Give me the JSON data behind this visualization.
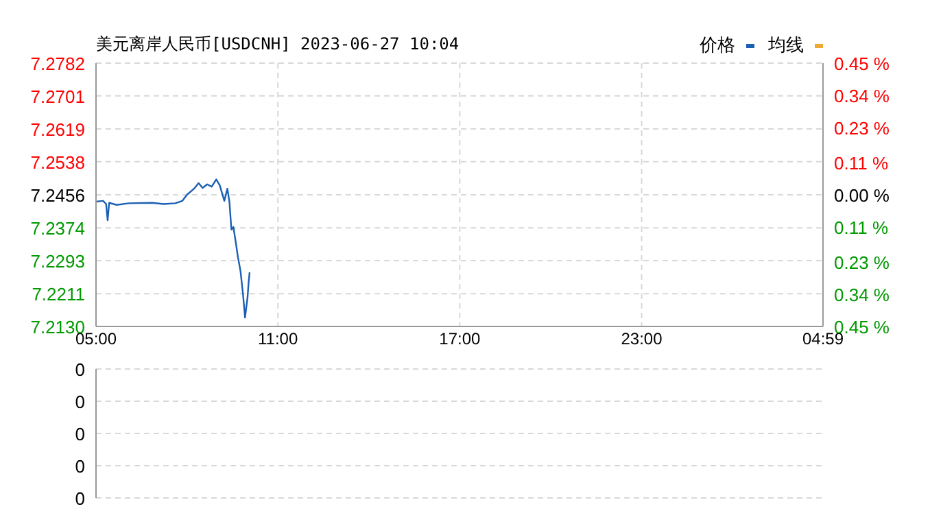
{
  "chart_data": [
    {
      "type": "line",
      "title": "美元离岸人民币[USDCNH] 2023-06-27 10:04",
      "x": [
        "2023-06-27T05:00",
        "2023-06-27T05:14",
        "2023-06-27T05:20",
        "2023-06-27T05:23",
        "2023-06-27T05:26",
        "2023-06-27T05:41",
        "2023-06-27T06:05",
        "2023-06-27T06:51",
        "2023-06-27T07:14",
        "2023-06-27T07:37",
        "2023-06-27T07:51",
        "2023-06-27T08:00",
        "2023-06-27T08:14",
        "2023-06-27T08:23",
        "2023-06-27T08:31",
        "2023-06-27T08:40",
        "2023-06-27T08:49",
        "2023-06-27T08:58",
        "2023-06-27T09:05",
        "2023-06-27T09:14",
        "2023-06-27T09:20",
        "2023-06-27T09:24",
        "2023-06-27T09:28",
        "2023-06-27T09:32",
        "2023-06-27T09:37",
        "2023-06-27T09:41",
        "2023-06-27T09:46",
        "2023-06-27T09:51",
        "2023-06-27T09:55",
        "2023-06-27T10:00",
        "2023-06-27T10:02",
        "2023-06-27T10:04"
      ],
      "series": [
        {
          "name": "价格",
          "color": "#1a5fb4",
          "values": [
            7.2439,
            7.2441,
            7.2433,
            7.2393,
            7.2436,
            7.2431,
            7.2435,
            7.2436,
            7.2433,
            7.2435,
            7.2441,
            7.2456,
            7.2471,
            7.2485,
            7.2473,
            7.2482,
            7.2476,
            7.2494,
            7.2479,
            7.2441,
            7.2471,
            7.2439,
            7.237,
            7.2376,
            7.2335,
            7.2301,
            7.2267,
            7.2209,
            7.2152,
            7.2203,
            7.2238,
            7.2264
          ]
        },
        {
          "name": "均线",
          "color": "#f0a830",
          "values": [
            null,
            null,
            null,
            null,
            null,
            null,
            null,
            null,
            null,
            null,
            null,
            null,
            null,
            null,
            null,
            null,
            null,
            null,
            null,
            null,
            null,
            null,
            null,
            null,
            null,
            null,
            null,
            null,
            null,
            null,
            null,
            null
          ]
        }
      ],
      "xlim": [
        "2023-06-27T05:00",
        "2023-06-28T04:59"
      ],
      "xticks": [
        {
          "value": "2023-06-27T05:00",
          "label": "05:00"
        },
        {
          "value": "2023-06-27T11:00",
          "label": "11:00"
        },
        {
          "value": "2023-06-27T17:00",
          "label": "17:00"
        },
        {
          "value": "2023-06-27T23:00",
          "label": "23:00"
        },
        {
          "value": "2023-06-28T04:59",
          "label": "04:59"
        }
      ],
      "ylim": [
        7.213,
        7.2782
      ],
      "yticks": [
        {
          "value": 7.213,
          "label": "7.2130"
        },
        7.2211,
        7.2293,
        7.2374,
        7.2456,
        7.2538,
        7.2619,
        7.2701,
        7.2782
      ],
      "y2lim": [
        -0.45,
        0.45
      ],
      "y2ticks": [
        {
          "value": -0.45,
          "label": "0.45 %"
        },
        {
          "value": -0.34,
          "label": "0.34 %"
        },
        {
          "value": -0.23,
          "label": "0.23 %"
        },
        {
          "value": -0.11,
          "label": "0.11 %"
        },
        {
          "value": 0,
          "label": "0.00 %"
        },
        {
          "value": 0.11,
          "label": "0.11 %"
        },
        {
          "value": 0.23,
          "label": "0.23 %"
        },
        {
          "value": 0.34,
          "label": "0.34 %"
        },
        {
          "value": 0.45,
          "label": "0.45 %"
        }
      ],
      "grid": true,
      "legend": "top right"
    },
    {
      "type": "bar",
      "xlim": [
        "2023-06-27T05:00",
        "2023-06-28T04:59"
      ],
      "xticks": [
        {
          "value": "2023-06-27T05:00",
          "label": null
        },
        {
          "value": "2023-06-27T11:00",
          "label": null
        },
        {
          "value": "2023-06-27T17:00",
          "label": null
        },
        {
          "value": "2023-06-27T23:00",
          "label": null
        },
        {
          "value": "2023-06-28T04:59",
          "label": null
        }
      ],
      "ylim": [
        0,
        0.4
      ],
      "yticks": [
        {
          "value": 0,
          "label": "0"
        },
        {
          "value": 0.1,
          "label": "0"
        },
        {
          "value": 0.2,
          "label": "0"
        },
        {
          "value": 0.3,
          "label": "0"
        },
        {
          "value": 0.4,
          "label": "0"
        }
      ],
      "grid": true,
      "tick_labels": "y"
    }
  ]
}
